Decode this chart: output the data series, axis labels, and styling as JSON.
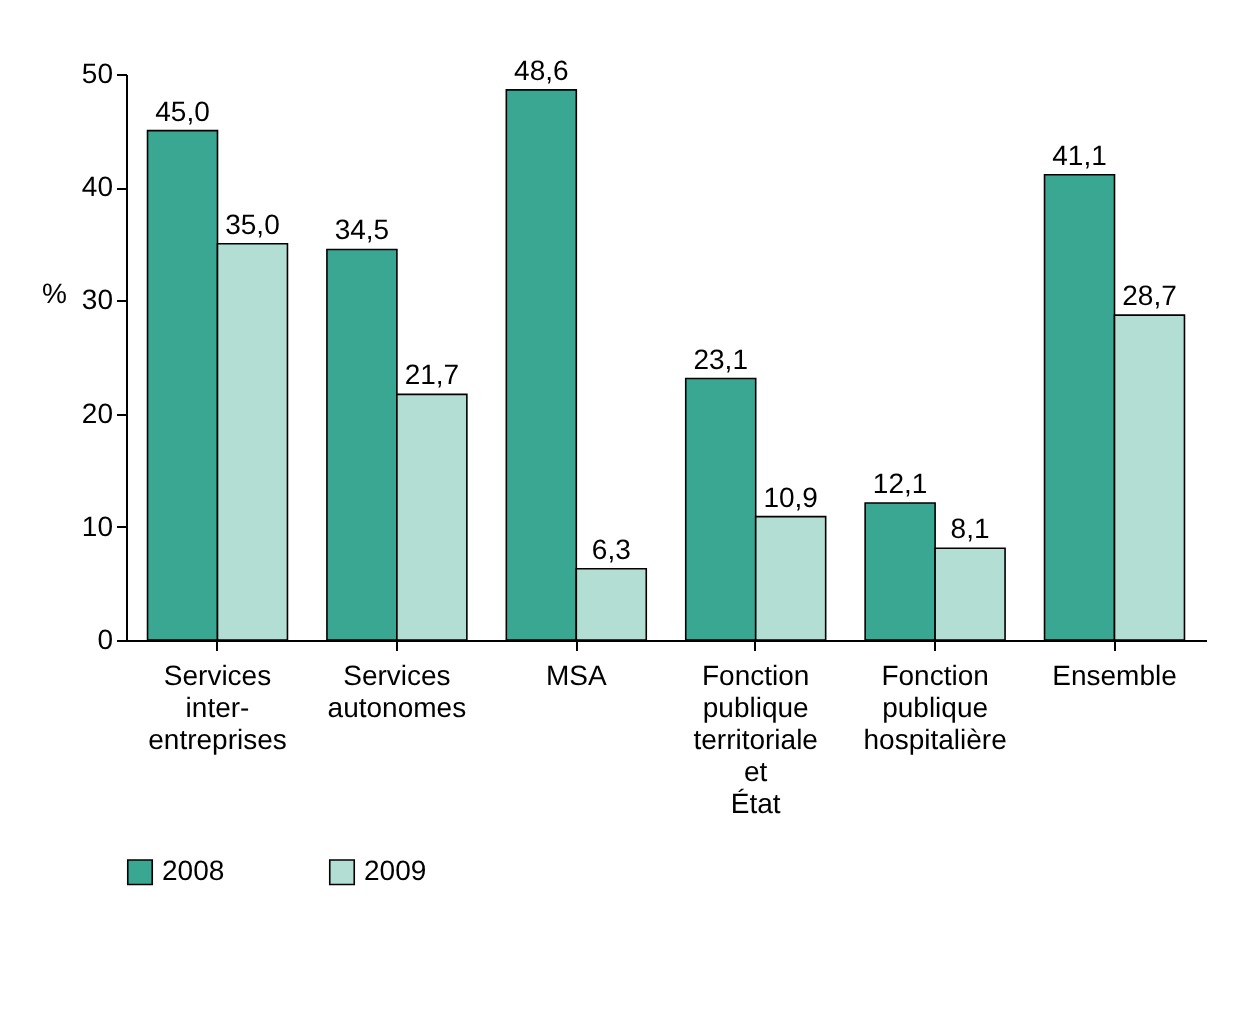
{
  "chart_data": {
    "type": "bar",
    "ylabel": "%",
    "categories": [
      "Services inter-entreprises",
      "Services autonomes",
      "MSA",
      "Fonction publique territoriale et État",
      "Fonction publique hospitalière",
      "Ensemble"
    ],
    "series": [
      {
        "name": "2008",
        "color": "#3aa792",
        "values": [
          45.0,
          34.5,
          48.6,
          23.1,
          12.1,
          41.1
        ],
        "value_labels": [
          "45,0",
          "34,5",
          "48,6",
          "23,1",
          "12,1",
          "41,1"
        ]
      },
      {
        "name": "2009",
        "color": "#b3ded4",
        "values": [
          35.0,
          21.7,
          6.3,
          10.9,
          8.1,
          28.7
        ],
        "value_labels": [
          "35,0",
          "21,7",
          "6,3",
          "10,9",
          "8,1",
          "28,7"
        ]
      }
    ],
    "ylim": [
      0,
      50
    ],
    "yticks": [
      0,
      10,
      20,
      30,
      40,
      50
    ],
    "grid": false,
    "legend": "bottom"
  }
}
